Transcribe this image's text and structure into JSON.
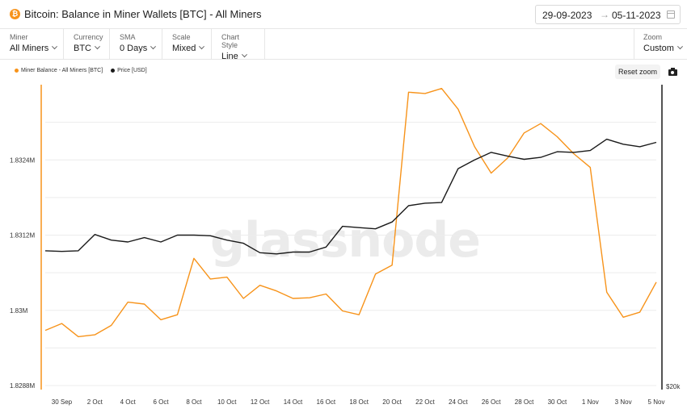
{
  "header": {
    "title": "Bitcoin: Balance in Miner Wallets [BTC] - All Miners",
    "date_start": "29-09-2023",
    "date_arrow": "→",
    "date_end": "05-11-2023",
    "icon_glyph": "₿"
  },
  "controls": {
    "miner": {
      "label": "Miner",
      "value": "All Miners"
    },
    "currency": {
      "label": "Currency",
      "value": "BTC"
    },
    "sma": {
      "label": "SMA",
      "value": "0 Days"
    },
    "scale": {
      "label": "Scale",
      "value": "Mixed"
    },
    "chart_style": {
      "label": "Chart Style",
      "value": "Line"
    },
    "zoom": {
      "label": "Zoom",
      "value": "Custom"
    }
  },
  "toolbar": {
    "reset_zoom": "Reset zoom"
  },
  "colors": {
    "balance": "#f7931a",
    "price": "#1a1a1a"
  },
  "chart_data": {
    "type": "line",
    "watermark": "glassnode",
    "x": [
      "29 Sep",
      "30 Sep",
      "1 Oct",
      "2 Oct",
      "3 Oct",
      "4 Oct",
      "5 Oct",
      "6 Oct",
      "7 Oct",
      "8 Oct",
      "9 Oct",
      "10 Oct",
      "11 Oct",
      "12 Oct",
      "13 Oct",
      "14 Oct",
      "15 Oct",
      "16 Oct",
      "17 Oct",
      "18 Oct",
      "19 Oct",
      "20 Oct",
      "21 Oct",
      "22 Oct",
      "23 Oct",
      "24 Oct",
      "25 Oct",
      "26 Oct",
      "27 Oct",
      "28 Oct",
      "29 Oct",
      "30 Oct",
      "31 Oct",
      "1 Nov",
      "2 Nov",
      "3 Nov",
      "4 Nov",
      "5 Nov"
    ],
    "x_tick_labels": [
      "30 Sep",
      "2 Oct",
      "4 Oct",
      "6 Oct",
      "8 Oct",
      "10 Oct",
      "12 Oct",
      "14 Oct",
      "16 Oct",
      "18 Oct",
      "20 Oct",
      "22 Oct",
      "24 Oct",
      "26 Oct",
      "28 Oct",
      "30 Oct",
      "1 Nov",
      "3 Nov",
      "5 Nov"
    ],
    "y_ticks": [
      "1.8288M",
      "1.83M",
      "1.8312M",
      "1.8324M"
    ],
    "y_tick_values": [
      1.8288,
      1.83,
      1.8312,
      1.8324
    ],
    "ylim": [
      1.8288,
      1.8336
    ],
    "right_axis_label": "$20k",
    "series": [
      {
        "name": "Miner Balance - All Miners [BTC]",
        "color": "#f7931a",
        "axis": "left",
        "values": [
          1.82968,
          1.82979,
          1.82958,
          1.82961,
          1.82976,
          1.83013,
          1.8301,
          1.82985,
          1.82993,
          1.83083,
          1.8305,
          1.83053,
          1.83019,
          1.8304,
          1.83031,
          1.83019,
          1.8302,
          1.83026,
          1.82999,
          1.82993,
          1.83058,
          1.83072,
          1.83348,
          1.83346,
          1.83354,
          1.83321,
          1.83261,
          1.83219,
          1.83243,
          1.83283,
          1.83298,
          1.83277,
          1.8325,
          1.83228,
          1.83029,
          1.82989,
          1.82997,
          1.83045
        ]
      },
      {
        "name": "Price [USD]",
        "color": "#1a1a1a",
        "axis": "right",
        "values": [
          1.83095,
          1.83094,
          1.83095,
          1.83121,
          1.83112,
          1.83109,
          1.83116,
          1.83109,
          1.8312,
          1.8312,
          1.83119,
          1.83112,
          1.83107,
          1.83092,
          1.8309,
          1.83093,
          1.83093,
          1.83101,
          1.83134,
          1.83132,
          1.8313,
          1.83141,
          1.83167,
          1.83171,
          1.83172,
          1.83226,
          1.8324,
          1.83252,
          1.83246,
          1.83241,
          1.83244,
          1.83253,
          1.83252,
          1.83255,
          1.83273,
          1.83265,
          1.83261,
          1.83268
        ]
      }
    ]
  }
}
